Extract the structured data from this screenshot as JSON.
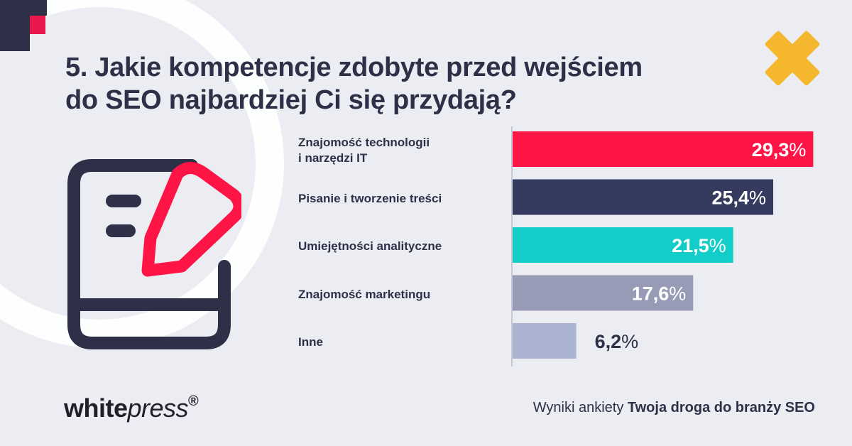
{
  "title": {
    "line1": "5. Jakie kompetencje zdobyte przed wejściem",
    "line2": "do SEO najbardziej Ci się przydają?"
  },
  "chart_data": {
    "type": "bar",
    "orientation": "horizontal",
    "categories": [
      [
        "Znajomość technologii",
        "i narzędzi IT"
      ],
      [
        "Pisanie i tworzenie treści"
      ],
      [
        "Umiejętności analityczne"
      ],
      [
        "Znajomość marketingu"
      ],
      [
        "Inne"
      ]
    ],
    "values": [
      29.3,
      25.4,
      21.5,
      17.6,
      6.2
    ],
    "value_labels": [
      "29,3",
      "25,4",
      "21,5",
      "17,6",
      "6,2"
    ],
    "unit": "%",
    "colors": [
      "#ff1446",
      "#353b5f",
      "#12cdc8",
      "#979bb6",
      "#aab4d2"
    ],
    "grid": false,
    "legend": "none"
  },
  "branding": {
    "logo_a": "white",
    "logo_b": "press",
    "logo_reg": "®"
  },
  "footer": {
    "prefix": "Wyniki ankiety",
    "survey_name": "Twoja droga do branży SEO"
  },
  "icons": [
    "document-edit-icon",
    "decorative-cross-icon"
  ]
}
